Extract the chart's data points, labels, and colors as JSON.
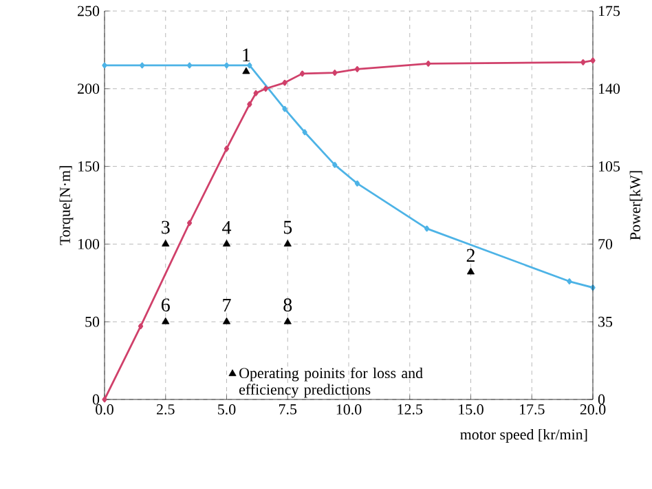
{
  "chart_data": {
    "type": "line",
    "xlabel": "motor speed [kr/min]",
    "ylabel": "Torque[N·m]",
    "y2label": "Power[kW]",
    "xlim": [
      0,
      20
    ],
    "xticks": [
      {
        "value": 0,
        "label": "0.0"
      },
      {
        "value": 2.5,
        "label": "2.5"
      },
      {
        "value": 5,
        "label": "5.0"
      },
      {
        "value": 7.5,
        "label": "7.5"
      },
      {
        "value": 10,
        "label": "10.0"
      },
      {
        "value": 12.5,
        "label": "12.5"
      },
      {
        "value": 15,
        "label": "15.0"
      },
      {
        "value": 17.5,
        "label": "17.5"
      },
      {
        "value": 20,
        "label": "20.0"
      }
    ],
    "ylim": [
      0,
      250
    ],
    "yticks": [
      0,
      50,
      100,
      150,
      200,
      250
    ],
    "y2lim": [
      0,
      175
    ],
    "y2ticks": [
      0,
      35,
      70,
      105,
      140,
      175
    ],
    "grid": true,
    "legend": "bottom",
    "series": [
      {
        "color": "#4db3e6",
        "marker": "diamond",
        "x": [
          0,
          1.54,
          3.48,
          5.0,
          5.94,
          7.38,
          8.2,
          9.43,
          10.35,
          13.2,
          19.04,
          20
        ],
        "values": [
          215,
          215,
          215,
          215,
          215,
          187,
          172,
          151,
          139,
          110,
          76,
          72
        ]
      },
      {
        "type": "line",
        "color": "#d0406a",
        "marker": "diamond",
        "axis": "y2",
        "x": [
          0,
          1.48,
          3.48,
          5.0,
          5.94,
          6.2,
          6.6,
          7.38,
          8.1,
          9.43,
          10.35,
          13.26,
          19.6,
          20
        ],
        "values": [
          0,
          33,
          79.5,
          113,
          133,
          138,
          140,
          142.7,
          146.8,
          147.2,
          148.8,
          151.3,
          151.9,
          152.7
        ]
      },
      {
        "type": "scatter",
        "name": "Operating poinits for loss and efficiency predictions",
        "color": "#000000",
        "marker": "triangle",
        "x": [
          5.8,
          15,
          2.5,
          5,
          7.5,
          2.5,
          5,
          7.5
        ],
        "values": [
          211,
          82,
          100,
          100,
          100,
          50,
          50,
          50
        ]
      }
    ],
    "annotations": [
      {
        "text": "1",
        "x": 5.8,
        "y": 211
      },
      {
        "text": "2",
        "x": 15,
        "y": 82
      },
      {
        "text": "3",
        "x": 2.5,
        "y": 100
      },
      {
        "text": "4",
        "x": 5,
        "y": 100
      },
      {
        "text": "5",
        "x": 7.5,
        "y": 100
      },
      {
        "text": "6",
        "x": 2.5,
        "y": 50
      },
      {
        "text": "7",
        "x": 5,
        "y": 50
      },
      {
        "text": "8",
        "x": 7.5,
        "y": 50
      }
    ]
  }
}
